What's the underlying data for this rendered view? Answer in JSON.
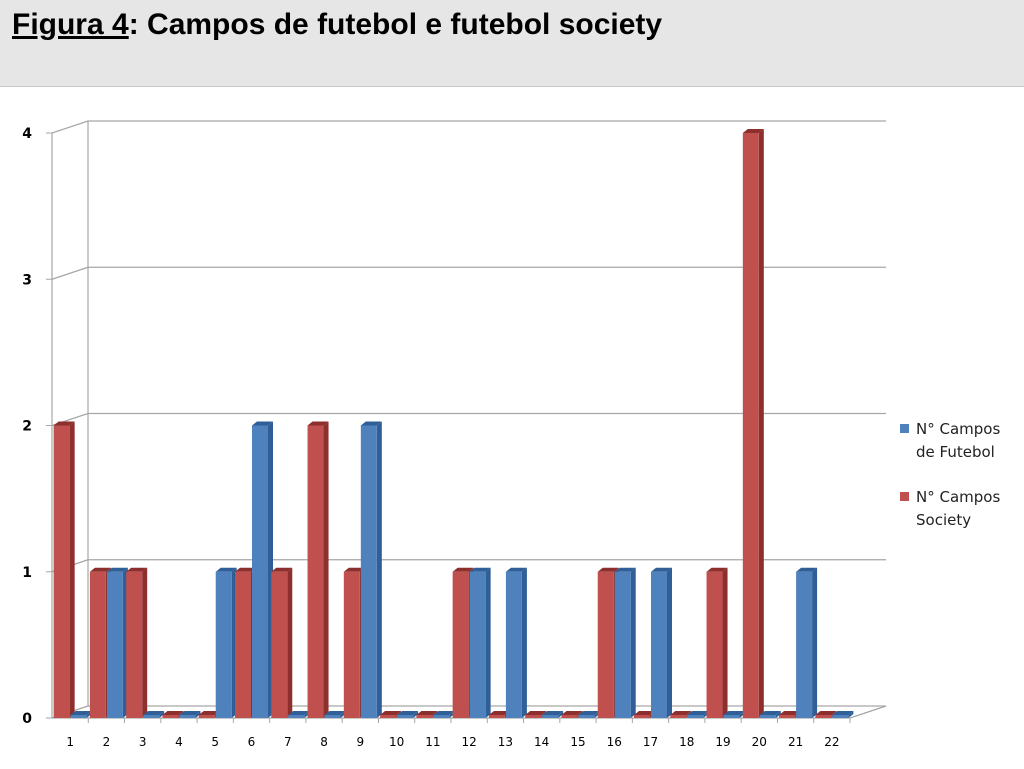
{
  "page": {
    "title_label": "Figura 4",
    "title_rest": ": Campos de futebol e futebol society"
  },
  "colors": {
    "futebol": "#4f81bd",
    "futebol_dark": "#2f5f96",
    "society": "#c0504d",
    "society_dark": "#8c2f2d",
    "grid": "#a6a6a6"
  },
  "chart_data": {
    "type": "bar",
    "categories": [
      "1",
      "2",
      "3",
      "4",
      "5",
      "6",
      "7",
      "8",
      "9",
      "10",
      "11",
      "12",
      "13",
      "14",
      "15",
      "16",
      "17",
      "18",
      "19",
      "20",
      "21",
      "22"
    ],
    "series": [
      {
        "name": "N° Campos de Futebol",
        "values": [
          0,
          1,
          0,
          0,
          1,
          2,
          0,
          0,
          2,
          0,
          0,
          1,
          1,
          0,
          0,
          1,
          1,
          0,
          0,
          0,
          1,
          0
        ]
      },
      {
        "name": "N° Campos Society",
        "values": [
          2,
          1,
          1,
          0,
          0,
          1,
          1,
          2,
          1,
          0,
          0,
          1,
          0,
          0,
          0,
          1,
          0,
          0,
          1,
          4,
          0,
          0
        ]
      }
    ],
    "yticks": [
      "0",
      "1",
      "2",
      "3",
      "4"
    ],
    "ylim": [
      0,
      4
    ],
    "grid": true,
    "legend": "right",
    "title": "",
    "xlabel": "",
    "ylabel": ""
  }
}
